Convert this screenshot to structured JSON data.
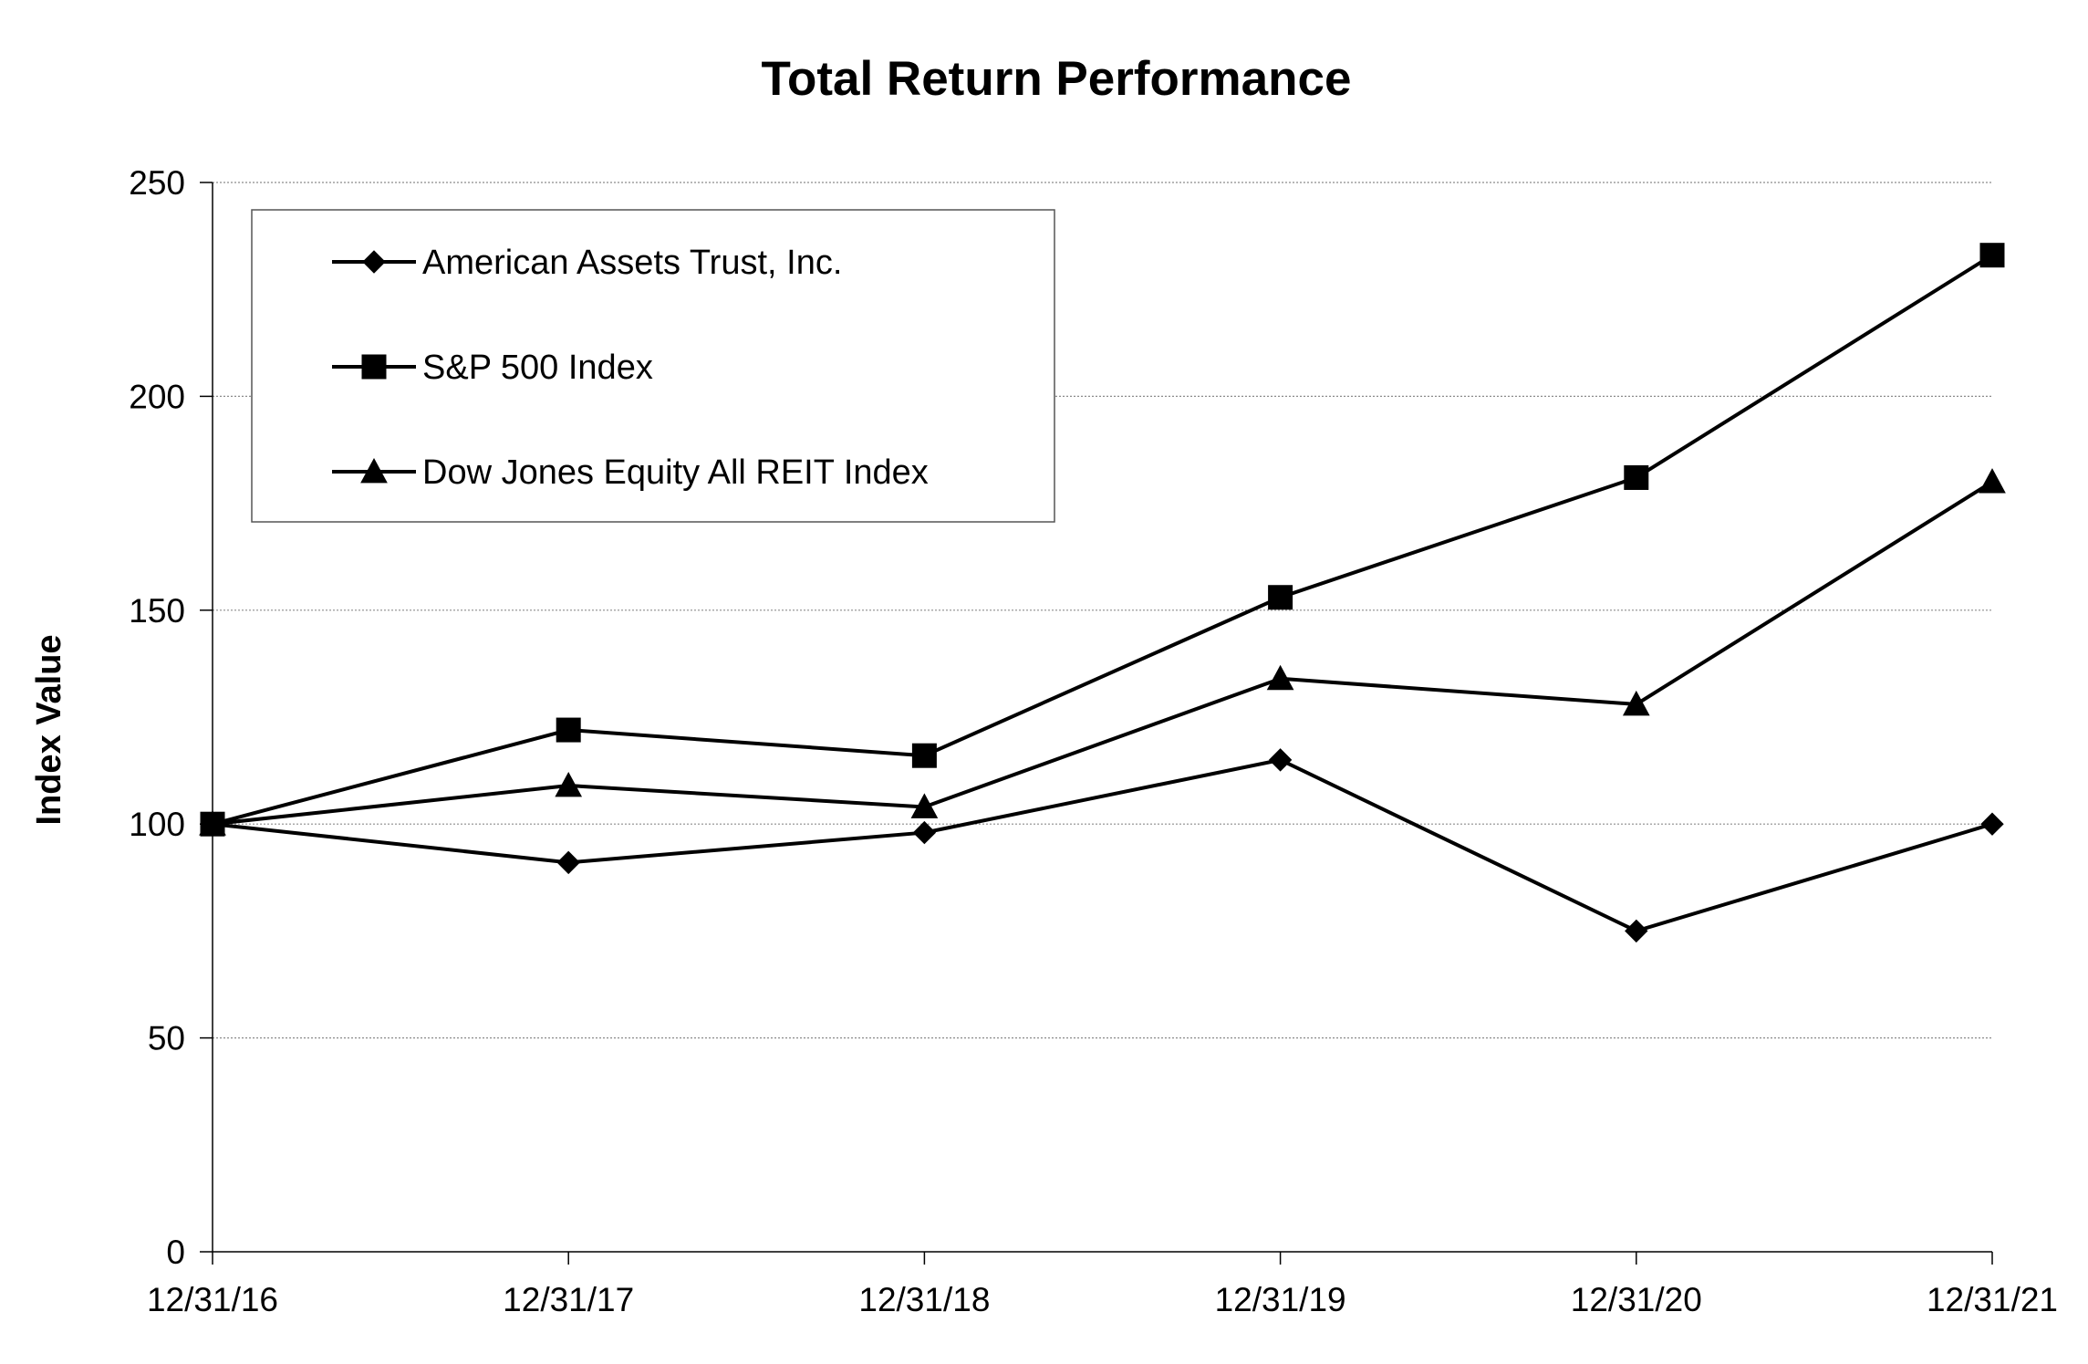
{
  "chart_data": {
    "type": "line",
    "title": "Total Return Performance",
    "xlabel": "",
    "ylabel": "Index Value",
    "categories": [
      "12/31/16",
      "12/31/17",
      "12/31/18",
      "12/31/19",
      "12/31/20",
      "12/31/21"
    ],
    "ylim": [
      0,
      250
    ],
    "yticks": [
      0,
      50,
      100,
      150,
      200,
      250
    ],
    "grid": true,
    "legend_position": "top-left",
    "series": [
      {
        "name": "American Assets Trust, Inc.",
        "marker": "diamond",
        "values": [
          100,
          91,
          98,
          115,
          75,
          100
        ]
      },
      {
        "name": "S&P 500 Index",
        "marker": "square",
        "values": [
          100,
          122,
          116,
          153,
          181,
          233
        ]
      },
      {
        "name": "Dow Jones Equity All REIT Index",
        "marker": "triangle",
        "values": [
          100,
          109,
          104,
          134,
          128,
          180
        ]
      }
    ]
  }
}
